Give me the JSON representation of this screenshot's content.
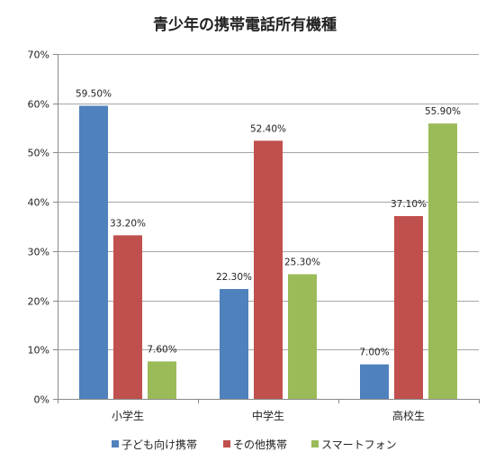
{
  "chart_data": {
    "type": "bar",
    "title": "青少年の携帯電話所有機種",
    "categories": [
      "小学生",
      "中学生",
      "高校生"
    ],
    "series": [
      {
        "name": "子ども向け携帯",
        "values": [
          59.5,
          22.3,
          7.0
        ],
        "labels": [
          "59.50%",
          "22.30%",
          "7.00%"
        ],
        "color": "#4f81bd"
      },
      {
        "name": "その他携帯",
        "values": [
          33.2,
          52.4,
          37.1
        ],
        "labels": [
          "33.20%",
          "52.40%",
          "37.10%"
        ],
        "color": "#c0504d"
      },
      {
        "name": "スマートフォン",
        "values": [
          7.6,
          25.3,
          55.9
        ],
        "labels": [
          "7.60%",
          "25.30%",
          "55.90%"
        ],
        "color": "#9bbb59"
      }
    ],
    "y_ticks": [
      "0%",
      "10%",
      "20%",
      "30%",
      "40%",
      "50%",
      "60%",
      "70%"
    ],
    "ylim": [
      0,
      70
    ],
    "grid": true,
    "legend_position": "bottom"
  }
}
